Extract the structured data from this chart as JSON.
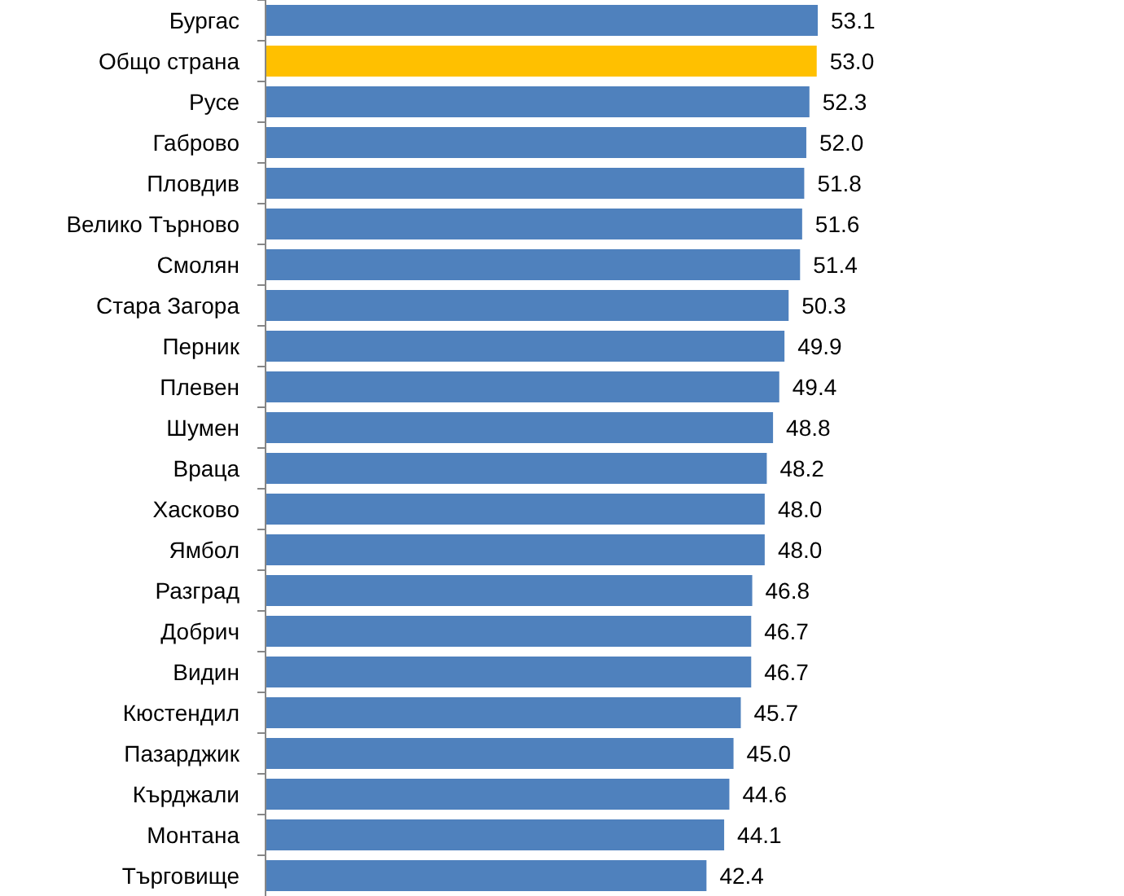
{
  "chart_data": {
    "type": "bar",
    "orientation": "horizontal",
    "value_labels": [
      "53.1",
      "53.0",
      "52.3",
      "52.0",
      "51.8",
      "51.6",
      "51.4",
      "50.3",
      "49.9",
      "49.4",
      "48.8",
      "48.2",
      "48.0",
      "48.0",
      "46.8",
      "46.7",
      "46.7",
      "45.7",
      "45.0",
      "44.6",
      "44.1",
      "42.4"
    ],
    "categories": [
      "Бургас",
      "Общо страна",
      "Русе",
      "Габрово",
      "Пловдив",
      "Велико Търново",
      "Смолян",
      "Стара Загора",
      "Перник",
      "Плевен",
      "Шумен",
      "Враца",
      "Хасково",
      "Ямбол",
      "Разград",
      "Добрич",
      "Видин",
      "Кюстендил",
      "Пазарджик",
      "Кърджали",
      "Монтана",
      "Търговище"
    ],
    "values": [
      53.1,
      53.0,
      52.3,
      52.0,
      51.8,
      51.6,
      51.4,
      50.3,
      49.9,
      49.4,
      48.8,
      48.2,
      48.0,
      48.0,
      46.8,
      46.7,
      46.7,
      45.7,
      45.0,
      44.6,
      44.1,
      42.4
    ],
    "colors": [
      "#4f81bd",
      "#ffc000",
      "#4f81bd",
      "#4f81bd",
      "#4f81bd",
      "#4f81bd",
      "#4f81bd",
      "#4f81bd",
      "#4f81bd",
      "#4f81bd",
      "#4f81bd",
      "#4f81bd",
      "#4f81bd",
      "#4f81bd",
      "#4f81bd",
      "#4f81bd",
      "#4f81bd",
      "#4f81bd",
      "#4f81bd",
      "#4f81bd",
      "#4f81bd",
      "#4f81bd"
    ]
  }
}
